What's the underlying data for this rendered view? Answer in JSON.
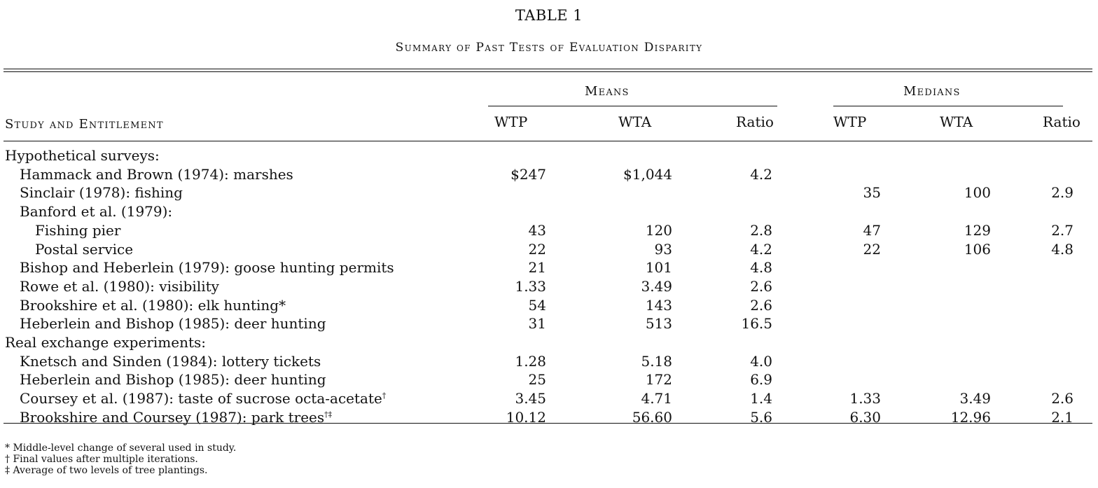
{
  "title": "TABLE 1",
  "subtitle": "Summary of Past Tests of Evaluation Disparity",
  "headers": {
    "study": "Study and Entitlement",
    "means": "Means",
    "medians": "Medians",
    "wtp": "WTP",
    "wta": "WTA",
    "ratio": "Ratio"
  },
  "rows": [
    {
      "label": "Hypothetical surveys:",
      "indent": 0,
      "mean_wtp": "",
      "mean_wta": "",
      "mean_ratio": "",
      "med_wtp": "",
      "med_wta": "",
      "med_ratio": ""
    },
    {
      "label": "Hammack and Brown (1974): marshes",
      "indent": 1,
      "mean_wtp": "$247",
      "mean_wta": "$1,044",
      "mean_ratio": "4.2",
      "med_wtp": "",
      "med_wta": "",
      "med_ratio": ""
    },
    {
      "label": "Sinclair (1978): fishing",
      "indent": 1,
      "mean_wtp": "",
      "mean_wta": "",
      "mean_ratio": "",
      "med_wtp": "35",
      "med_wta": "100",
      "med_ratio": "2.9"
    },
    {
      "label": "Banford et al. (1979):",
      "indent": 1,
      "mean_wtp": "",
      "mean_wta": "",
      "mean_ratio": "",
      "med_wtp": "",
      "med_wta": "",
      "med_ratio": ""
    },
    {
      "label": "Fishing pier",
      "indent": 2,
      "mean_wtp": "43",
      "mean_wta": "120",
      "mean_ratio": "2.8",
      "med_wtp": "47",
      "med_wta": "129",
      "med_ratio": "2.7"
    },
    {
      "label": "Postal service",
      "indent": 2,
      "mean_wtp": "22",
      "mean_wta": "93",
      "mean_ratio": "4.2",
      "med_wtp": "22",
      "med_wta": "106",
      "med_ratio": "4.8"
    },
    {
      "label": "Bishop and Heberlein (1979): goose hunting permits",
      "indent": 1,
      "mean_wtp": "21",
      "mean_wta": "101",
      "mean_ratio": "4.8",
      "med_wtp": "",
      "med_wta": "",
      "med_ratio": ""
    },
    {
      "label": "Rowe et al. (1980): visibility",
      "indent": 1,
      "mean_wtp": "1.33",
      "mean_wta": "3.49",
      "mean_ratio": "2.6",
      "med_wtp": "",
      "med_wta": "",
      "med_ratio": ""
    },
    {
      "label": "Brookshire et al. (1980): elk hunting*",
      "indent": 1,
      "mean_wtp": "54",
      "mean_wta": "143",
      "mean_ratio": "2.6",
      "med_wtp": "",
      "med_wta": "",
      "med_ratio": ""
    },
    {
      "label": "Heberlein and Bishop (1985): deer hunting",
      "indent": 1,
      "mean_wtp": "31",
      "mean_wta": "513",
      "mean_ratio": "16.5",
      "med_wtp": "",
      "med_wta": "",
      "med_ratio": ""
    },
    {
      "label": "Real exchange experiments:",
      "indent": 0,
      "mean_wtp": "",
      "mean_wta": "",
      "mean_ratio": "",
      "med_wtp": "",
      "med_wta": "",
      "med_ratio": ""
    },
    {
      "label": "Knetsch and Sinden (1984): lottery tickets",
      "indent": 1,
      "mean_wtp": "1.28",
      "mean_wta": "5.18",
      "mean_ratio": "4.0",
      "med_wtp": "",
      "med_wta": "",
      "med_ratio": ""
    },
    {
      "label": "Heberlein and Bishop (1985): deer hunting",
      "indent": 1,
      "mean_wtp": "25",
      "mean_wta": "172",
      "mean_ratio": "6.9",
      "med_wtp": "",
      "med_wta": "",
      "med_ratio": ""
    },
    {
      "label": "Coursey et al. (1987): taste of sucrose octa-acetate",
      "sup": "†",
      "indent": 1,
      "mean_wtp": "3.45",
      "mean_wta": "4.71",
      "mean_ratio": "1.4",
      "med_wtp": "1.33",
      "med_wta": "3.49",
      "med_ratio": "2.6"
    },
    {
      "label": "Brookshire and Coursey (1987): park trees",
      "sup": "†‡",
      "indent": 1,
      "mean_wtp": "10.12",
      "mean_wta": "56.60",
      "mean_ratio": "5.6",
      "med_wtp": "6.30",
      "med_wta": "12.96",
      "med_ratio": "2.1"
    }
  ],
  "footnotes": [
    "* Middle-level change of several used in study.",
    "† Final values after multiple iterations.",
    "‡ Average of two levels of tree plantings."
  ]
}
